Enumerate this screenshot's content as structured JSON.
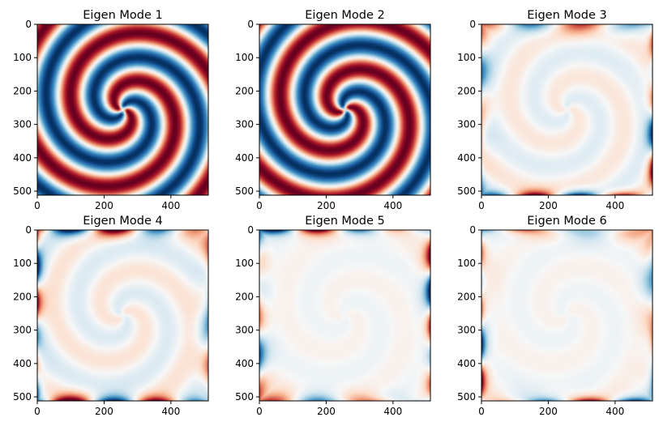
{
  "chart_data": [
    {
      "type": "heatmap",
      "title": "Eigen Mode 1",
      "colormap": "RdBu_r",
      "extent": [
        0,
        512
      ],
      "x_ticks": [
        0,
        200,
        400
      ],
      "y_ticks": [
        0,
        100,
        200,
        300,
        400,
        500
      ],
      "pattern": "two-arm spiral",
      "center": [
        256,
        256
      ],
      "amplitude": 1.0,
      "arms": 2,
      "phase": 0,
      "edge_amplitude": 0.0
    },
    {
      "type": "heatmap",
      "title": "Eigen Mode 2",
      "colormap": "RdBu_r",
      "extent": [
        0,
        512
      ],
      "x_ticks": [
        0,
        200,
        400
      ],
      "y_ticks": [
        0,
        100,
        200,
        300,
        400,
        500
      ],
      "pattern": "two-arm spiral",
      "center": [
        256,
        256
      ],
      "amplitude": 1.0,
      "arms": 2,
      "phase": 1.5708,
      "edge_amplitude": 0.0
    },
    {
      "type": "heatmap",
      "title": "Eigen Mode 3",
      "colormap": "RdBu_r",
      "extent": [
        0,
        512
      ],
      "x_ticks": [
        0,
        200,
        400
      ],
      "y_ticks": [
        0,
        100,
        200,
        300,
        400,
        500
      ],
      "pattern": "faint spiral with boundary lobes",
      "center": [
        256,
        256
      ],
      "amplitude": 0.12,
      "arms": 2,
      "phase": 0.6,
      "edge_amplitude": 0.8
    },
    {
      "type": "heatmap",
      "title": "Eigen Mode 4",
      "colormap": "RdBu_r",
      "extent": [
        0,
        512
      ],
      "x_ticks": [
        0,
        200,
        400
      ],
      "y_ticks": [
        0,
        100,
        200,
        300,
        400,
        500
      ],
      "pattern": "faint spiral with boundary lobes",
      "center": [
        256,
        256
      ],
      "amplitude": 0.14,
      "arms": 2,
      "phase": 2.2,
      "edge_amplitude": 0.85
    },
    {
      "type": "heatmap",
      "title": "Eigen Mode 5",
      "colormap": "RdBu_r",
      "extent": [
        0,
        512
      ],
      "x_ticks": [
        0,
        200,
        400
      ],
      "y_ticks": [
        0,
        100,
        200,
        300,
        400,
        500
      ],
      "pattern": "very faint spiral with boundary lobes",
      "center": [
        256,
        256
      ],
      "amplitude": 0.05,
      "arms": 2,
      "phase": 1.0,
      "edge_amplitude": 0.9
    },
    {
      "type": "heatmap",
      "title": "Eigen Mode 6",
      "colormap": "RdBu_r",
      "extent": [
        0,
        512
      ],
      "x_ticks": [
        0,
        200,
        400
      ],
      "y_ticks": [
        0,
        100,
        200,
        300,
        400,
        500
      ],
      "pattern": "very faint spiral with boundary lobes",
      "center": [
        256,
        256
      ],
      "amplitude": 0.05,
      "arms": 2,
      "phase": 2.6,
      "edge_amplitude": 0.9
    }
  ]
}
